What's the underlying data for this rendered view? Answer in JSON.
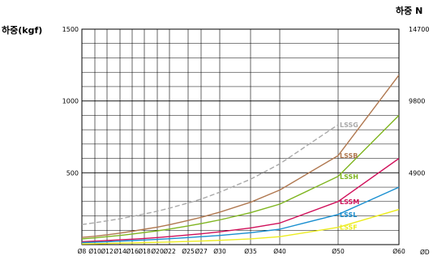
{
  "chart_data": {
    "type": "line",
    "ylabel_left": "하중(kgf)",
    "ylabel_right": "하중 N",
    "xlabel_unit": "ØD",
    "x_categories": [
      "Ø8",
      "Ø10",
      "Ø12",
      "Ø14",
      "Ø16",
      "Ø18",
      "Ø20",
      "Ø22",
      "Ø25",
      "Ø27",
      "Ø30",
      "Ø35",
      "Ø40",
      "Ø50",
      "Ø60"
    ],
    "x_values": [
      8,
      10,
      12,
      14,
      16,
      18,
      20,
      22,
      25,
      27,
      30,
      35,
      40,
      50,
      60
    ],
    "xlim": [
      8,
      60
    ],
    "ylim": [
      0,
      1500
    ],
    "yticks_left": [
      {
        "value": 500,
        "label": "500"
      },
      {
        "value": 1000,
        "label": "1000"
      },
      {
        "value": 1500,
        "label": "1500"
      }
    ],
    "yticks_right": [
      {
        "value": 500,
        "label": "4900"
      },
      {
        "value": 1000,
        "label": "9800"
      },
      {
        "value": 1500,
        "label": "14700"
      }
    ],
    "grid": true,
    "series": [
      {
        "name": "LSSG",
        "color": "#a9a9a9",
        "dashed": true,
        "x": [
          8,
          10,
          12,
          14,
          16,
          18,
          20,
          22,
          25,
          27,
          30,
          35,
          40,
          50
        ],
        "values": [
          140,
          152,
          165,
          180,
          196,
          214,
          233,
          254,
          290,
          317,
          365,
          455,
          562,
          835
        ]
      },
      {
        "name": "LSSB",
        "color": "#b07850",
        "dashed": false,
        "x": [
          8,
          10,
          12,
          14,
          16,
          18,
          20,
          22,
          25,
          27,
          30,
          35,
          40,
          50,
          60
        ],
        "values": [
          50,
          58,
          68,
          80,
          93,
          107,
          122,
          139,
          168,
          190,
          226,
          295,
          380,
          620,
          1180
        ]
      },
      {
        "name": "LSSH",
        "color": "#7fb520",
        "dashed": false,
        "x": [
          8,
          10,
          12,
          14,
          16,
          18,
          20,
          22,
          25,
          27,
          30,
          35,
          40,
          50,
          60
        ],
        "values": [
          40,
          47,
          55,
          64,
          74,
          84,
          96,
          108,
          130,
          146,
          172,
          222,
          282,
          475,
          900
        ]
      },
      {
        "name": "LSSM",
        "color": "#d0105a",
        "dashed": false,
        "x": [
          8,
          10,
          12,
          14,
          16,
          18,
          20,
          22,
          25,
          27,
          30,
          35,
          40,
          50,
          60
        ],
        "values": [
          20,
          24,
          28,
          33,
          38,
          43,
          49,
          56,
          67,
          75,
          89,
          116,
          150,
          300,
          600
        ]
      },
      {
        "name": "LSSL",
        "color": "#1a8fd0",
        "dashed": false,
        "x": [
          8,
          10,
          12,
          14,
          16,
          18,
          20,
          22,
          25,
          27,
          30,
          35,
          40,
          50,
          60
        ],
        "values": [
          14,
          17,
          20,
          24,
          28,
          32,
          36,
          41,
          49,
          55,
          64,
          83,
          107,
          210,
          400
        ]
      },
      {
        "name": "LSSF",
        "color": "#ecec20",
        "dashed": false,
        "x": [
          8,
          10,
          12,
          14,
          16,
          18,
          20,
          22,
          25,
          27,
          30,
          35,
          40,
          50,
          60
        ],
        "values": [
          5,
          6,
          8,
          10,
          12,
          14,
          16,
          18,
          22,
          25,
          30,
          40,
          55,
          120,
          245
        ]
      }
    ]
  }
}
